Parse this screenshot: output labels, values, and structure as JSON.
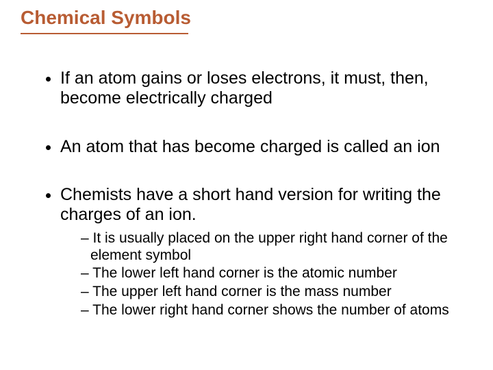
{
  "colors": {
    "title": "#b85c33",
    "underline": "#b85c33",
    "body": "#000000",
    "background": "#ffffff"
  },
  "title": "Chemical Symbols",
  "bullets": [
    {
      "text": "If an atom gains or loses electrons, it must, then, become electrically charged",
      "sub": []
    },
    {
      "text": "An atom that has become charged is called an ion",
      "sub": []
    },
    {
      "text": "Chemists have a short hand version for writing the charges of an ion.",
      "sub": [
        "It is usually placed on the upper right hand corner of the element symbol",
        "The lower left hand corner is the atomic number",
        "The upper left hand corner is the mass number",
        "The lower right hand corner shows the number of atoms"
      ]
    }
  ]
}
